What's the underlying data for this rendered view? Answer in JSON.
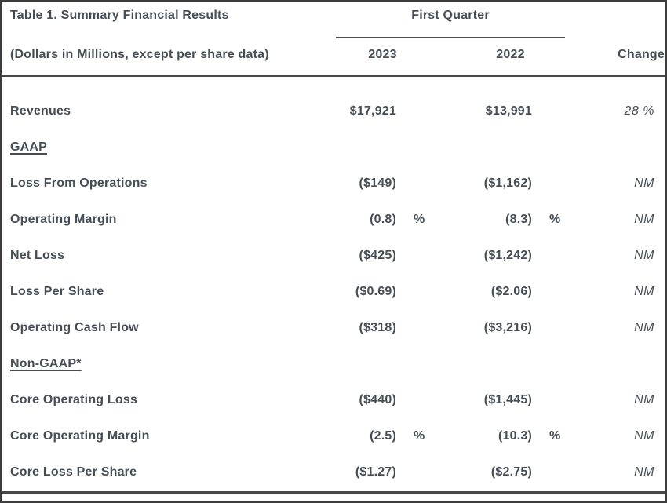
{
  "table": {
    "title": "Table 1. Summary Financial Results",
    "subtitle": "(Dollars in Millions, except per share data)",
    "quarter_label": "First Quarter",
    "columns": [
      "2023",
      "2022",
      "Change"
    ],
    "rows": [
      {
        "type": "data",
        "label": "Revenues",
        "v2023": "$17,921",
        "pct2023": "",
        "v2022": "$13,991",
        "pct2022": "",
        "change": "28 %"
      },
      {
        "type": "section",
        "label": "GAAP",
        "v2023": "",
        "pct2023": "",
        "v2022": "",
        "pct2022": "",
        "change": ""
      },
      {
        "type": "data",
        "label": "Loss From Operations",
        "v2023": "($149)",
        "pct2023": "",
        "v2022": "($1,162)",
        "pct2022": "",
        "change": "NM"
      },
      {
        "type": "data",
        "label": "Operating Margin",
        "v2023": "(0.8)",
        "pct2023": "%",
        "v2022": "(8.3)",
        "pct2022": "%",
        "change": "NM"
      },
      {
        "type": "data",
        "label": "Net Loss",
        "v2023": "($425)",
        "pct2023": "",
        "v2022": "($1,242)",
        "pct2022": "",
        "change": "NM"
      },
      {
        "type": "data",
        "label": "Loss Per Share",
        "v2023": "($0.69)",
        "pct2023": "",
        "v2022": "($2.06)",
        "pct2022": "",
        "change": "NM"
      },
      {
        "type": "data",
        "label": "Operating Cash Flow",
        "v2023": "($318)",
        "pct2023": "",
        "v2022": "($3,216)",
        "pct2022": "",
        "change": "NM"
      },
      {
        "type": "section",
        "label": "Non-GAAP*",
        "v2023": "",
        "pct2023": "",
        "v2022": "",
        "pct2022": "",
        "change": ""
      },
      {
        "type": "data",
        "label": "Core Operating Loss",
        "v2023": "($440)",
        "pct2023": "",
        "v2022": "($1,445)",
        "pct2022": "",
        "change": "NM"
      },
      {
        "type": "data",
        "label": "Core Operating Margin",
        "v2023": "(2.5)",
        "pct2023": "%",
        "v2022": "(10.3)",
        "pct2022": "%",
        "change": "NM"
      },
      {
        "type": "data",
        "label": "Core Loss Per Share",
        "v2023": "($1.27)",
        "pct2023": "",
        "v2022": "($2.75)",
        "pct2022": "",
        "change": "NM"
      }
    ],
    "colors": {
      "text": "#454d56",
      "outer_border": "#3c3c3c",
      "rule": "#484848",
      "quarter_underline": "#4f4f4f",
      "background": "#ffffff"
    }
  }
}
